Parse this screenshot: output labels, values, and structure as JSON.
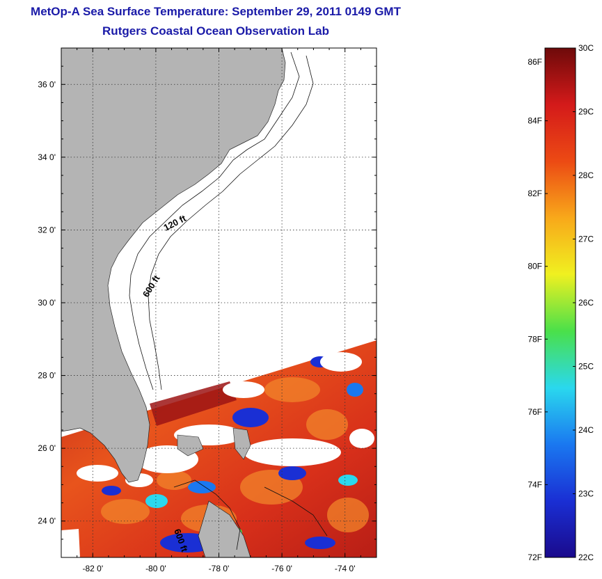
{
  "title": {
    "line1": "MetOp-A Sea Surface Temperature:  September 29, 2011 0149 GMT",
    "line2": "Rutgers Coastal Ocean Observation Lab"
  },
  "map": {
    "lon_range": [
      -83,
      -73
    ],
    "lat_range": [
      23,
      37
    ],
    "lat_ticks": [
      {
        "value": 24,
        "label": "24 0'"
      },
      {
        "value": 26,
        "label": "26 0'"
      },
      {
        "value": 28,
        "label": "28 0'"
      },
      {
        "value": 30,
        "label": "30 0'"
      },
      {
        "value": 32,
        "label": "32 0'"
      },
      {
        "value": 34,
        "label": "34 0'"
      },
      {
        "value": 36,
        "label": "36 0'"
      }
    ],
    "lon_ticks": [
      {
        "value": -82,
        "label": "-82 0'"
      },
      {
        "value": -80,
        "label": "-80 0'"
      },
      {
        "value": -78,
        "label": "-78 0'"
      },
      {
        "value": -76,
        "label": "-76 0'"
      },
      {
        "value": -74,
        "label": "-74 0'"
      }
    ],
    "contour_labels": [
      "120 ft",
      "600 ft",
      "600 ft"
    ],
    "colors": {
      "land": "#b4b4b4",
      "cloud_mask": "#ffffff",
      "grid": "#000000"
    }
  },
  "colorbar": {
    "range_c": [
      22,
      30
    ],
    "range_f": [
      72,
      86
    ],
    "celsius_ticks": [
      {
        "value": 30,
        "label": "30C"
      },
      {
        "value": 29,
        "label": "29C"
      },
      {
        "value": 28,
        "label": "28C"
      },
      {
        "value": 27,
        "label": "27C"
      },
      {
        "value": 26,
        "label": "26C"
      },
      {
        "value": 25,
        "label": "25C"
      },
      {
        "value": 24,
        "label": "24C"
      },
      {
        "value": 23,
        "label": "23C"
      },
      {
        "value": 22,
        "label": "22C"
      }
    ],
    "fahrenheit_ticks": [
      {
        "value": 86,
        "label": "86F"
      },
      {
        "value": 84,
        "label": "84F"
      },
      {
        "value": 82,
        "label": "82F"
      },
      {
        "value": 80,
        "label": "80F"
      },
      {
        "value": 78,
        "label": "78F"
      },
      {
        "value": 76,
        "label": "76F"
      },
      {
        "value": 74,
        "label": "74F"
      },
      {
        "value": 72,
        "label": "72F"
      }
    ],
    "colors": [
      "#1a0a8c",
      "#1a2fd4",
      "#1a78f0",
      "#2ad8ee",
      "#4ae04a",
      "#f0f020",
      "#f8a81a",
      "#ec4a14",
      "#d41a1a",
      "#6e0a0a"
    ]
  }
}
